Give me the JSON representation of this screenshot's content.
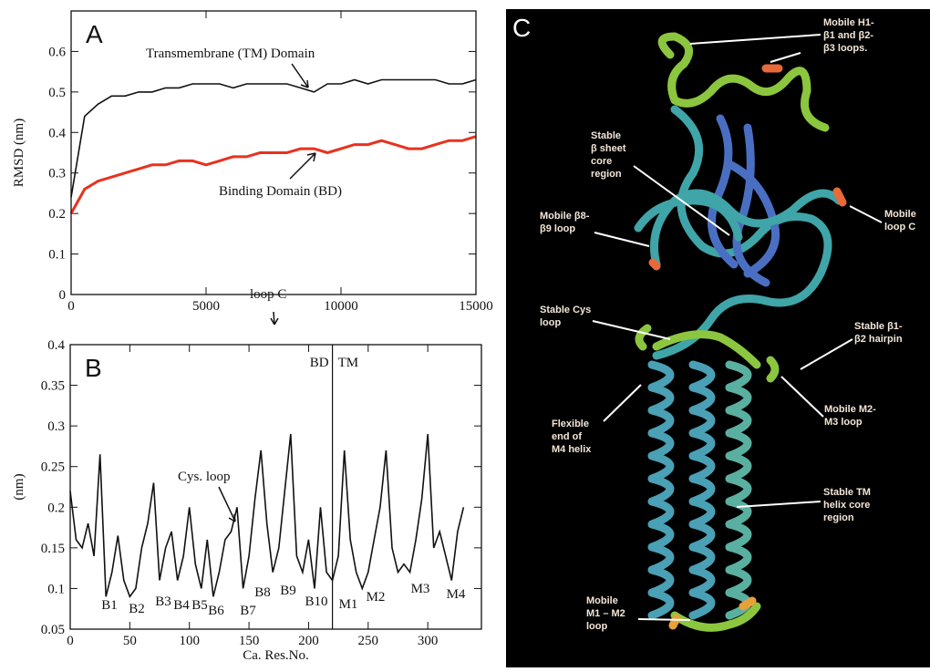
{
  "chart_data": [
    {
      "type": "line",
      "panel_label": "A",
      "ylabel": "RMSD (nm)",
      "x": [
        0,
        500,
        1000,
        1500,
        2000,
        2500,
        3000,
        3500,
        4000,
        4500,
        5000,
        5500,
        6000,
        6500,
        7000,
        7500,
        8000,
        8500,
        9000,
        9500,
        10000,
        10500,
        11000,
        11500,
        12000,
        12500,
        13000,
        13500,
        14000,
        14500,
        15000
      ],
      "series": [
        {
          "name": "Transmembrane (TM) Domain",
          "color": "#111111",
          "values": [
            0.24,
            0.44,
            0.47,
            0.49,
            0.49,
            0.5,
            0.5,
            0.51,
            0.51,
            0.52,
            0.52,
            0.52,
            0.51,
            0.52,
            0.52,
            0.52,
            0.52,
            0.51,
            0.5,
            0.52,
            0.52,
            0.53,
            0.52,
            0.53,
            0.53,
            0.53,
            0.53,
            0.53,
            0.52,
            0.52,
            0.53
          ]
        },
        {
          "name": "Binding Domain (BD)",
          "color": "#e8321e",
          "values": [
            0.2,
            0.26,
            0.28,
            0.29,
            0.3,
            0.31,
            0.32,
            0.32,
            0.33,
            0.33,
            0.32,
            0.33,
            0.34,
            0.34,
            0.35,
            0.35,
            0.35,
            0.36,
            0.36,
            0.35,
            0.36,
            0.37,
            0.37,
            0.38,
            0.37,
            0.36,
            0.36,
            0.37,
            0.38,
            0.38,
            0.39
          ]
        }
      ],
      "xlim": [
        0,
        15000
      ],
      "ylim": [
        0,
        0.7
      ],
      "xticks": [
        0,
        5000,
        10000,
        15000
      ],
      "yticks": [
        0,
        0.1,
        0.2,
        0.3,
        0.4,
        0.5,
        0.6
      ]
    },
    {
      "type": "line",
      "panel_label": "B",
      "ylabel": "(nm)",
      "xlabel": "Ca. Res.No.",
      "x": [
        0,
        5,
        10,
        15,
        20,
        25,
        30,
        35,
        40,
        45,
        50,
        55,
        60,
        65,
        70,
        75,
        80,
        85,
        90,
        95,
        100,
        105,
        110,
        115,
        120,
        125,
        130,
        135,
        140,
        145,
        150,
        155,
        160,
        165,
        170,
        175,
        180,
        185,
        190,
        195,
        200,
        205,
        210,
        215,
        220,
        225,
        230,
        235,
        240,
        245,
        250,
        255,
        260,
        265,
        270,
        275,
        280,
        285,
        290,
        295,
        300,
        305,
        310,
        315,
        320,
        325,
        330
      ],
      "series": [
        {
          "color": "#111111",
          "values": [
            0.22,
            0.16,
            0.15,
            0.18,
            0.14,
            0.265,
            0.09,
            0.12,
            0.165,
            0.11,
            0.09,
            0.1,
            0.15,
            0.18,
            0.23,
            0.11,
            0.15,
            0.17,
            0.11,
            0.14,
            0.2,
            0.13,
            0.1,
            0.16,
            0.09,
            0.12,
            0.16,
            0.17,
            0.2,
            0.1,
            0.14,
            0.21,
            0.27,
            0.18,
            0.12,
            0.15,
            0.22,
            0.29,
            0.14,
            0.12,
            0.16,
            0.1,
            0.2,
            0.12,
            0.11,
            0.14,
            0.27,
            0.16,
            0.12,
            0.1,
            0.12,
            0.16,
            0.2,
            0.27,
            0.15,
            0.12,
            0.13,
            0.12,
            0.16,
            0.21,
            0.29,
            0.15,
            0.17,
            0.14,
            0.11,
            0.17,
            0.2
          ]
        }
      ],
      "xlim": [
        0,
        345
      ],
      "ylim": [
        0.05,
        0.4
      ],
      "xticks": [
        0,
        50,
        100,
        150,
        200,
        250,
        300
      ],
      "yticks": [
        0.05,
        0.1,
        0.15,
        0.2,
        0.25,
        0.3,
        0.35,
        0.4
      ],
      "divider": {
        "x": 220,
        "labels": [
          "BD",
          "TM"
        ]
      },
      "annotations": [
        "loop C",
        "Cys. loop"
      ],
      "region_labels": [
        "B1",
        "B2",
        "B3",
        "B4",
        "B5",
        "B6",
        "B7",
        "B8",
        "B9",
        "B10",
        "M1",
        "M2",
        "M3",
        "M4"
      ]
    }
  ],
  "panel_c": {
    "label": "C",
    "annotations": [
      [
        "Mobile H1-",
        "β1 and β2-",
        "β3 loops."
      ],
      [
        "Stable",
        "β sheet",
        "core",
        "region"
      ],
      [
        "Mobile β8-",
        "β9 loop"
      ],
      [
        "Mobile",
        "loop C"
      ],
      [
        "Stable Cys",
        "loop"
      ],
      [
        "Stable β1-",
        "β2 hairpin"
      ],
      [
        "Flexible",
        "end of",
        "M4 helix"
      ],
      [
        "Mobile M2-",
        "M3 loop"
      ],
      [
        "Stable TM",
        "helix core",
        "region"
      ],
      [
        "Mobile",
        "M1 – M2",
        "loop"
      ]
    ]
  }
}
